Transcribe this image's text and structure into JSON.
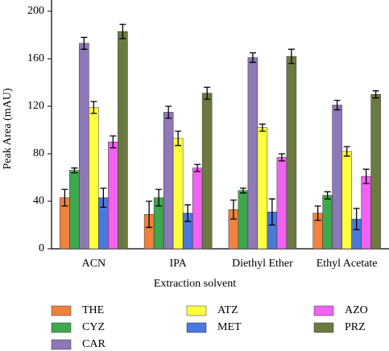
{
  "chart_data": {
    "type": "bar",
    "x_label": "Extraction solvent",
    "y_label": "Peak Area (mAU)",
    "categories": [
      "ACN",
      "IPA",
      "Diethyl Ether",
      "Ethyl Acetate"
    ],
    "series": [
      {
        "name": "THE",
        "color": "#f0813f",
        "values": [
          43,
          29,
          33,
          30
        ],
        "errors": [
          7,
          11,
          8,
          6
        ]
      },
      {
        "name": "CYZ",
        "color": "#3ea84f",
        "values": [
          66,
          43,
          49,
          45
        ],
        "errors": [
          2,
          7,
          2,
          3
        ]
      },
      {
        "name": "CAR",
        "color": "#8e78b8",
        "values": [
          173,
          115,
          161,
          121
        ],
        "errors": [
          5,
          5,
          4,
          4
        ]
      },
      {
        "name": "ATZ",
        "color": "#ffff3f",
        "values": [
          119,
          93,
          102,
          82
        ],
        "errors": [
          5,
          6,
          3,
          4
        ]
      },
      {
        "name": "MET",
        "color": "#4a78df",
        "values": [
          43,
          30,
          31,
          25
        ],
        "errors": [
          8,
          7,
          11,
          9
        ]
      },
      {
        "name": "AZO",
        "color": "#f062ef",
        "values": [
          90,
          68,
          77,
          61
        ],
        "errors": [
          5,
          3,
          3,
          6
        ]
      },
      {
        "name": "PRZ",
        "color": "#6b7a41",
        "values": [
          183,
          131,
          162,
          130
        ],
        "errors": [
          6,
          5,
          6,
          3
        ]
      }
    ],
    "ylim": [
      0,
      200
    ],
    "yticks": [
      0,
      40,
      80,
      120,
      160,
      200
    ],
    "grid": false
  }
}
